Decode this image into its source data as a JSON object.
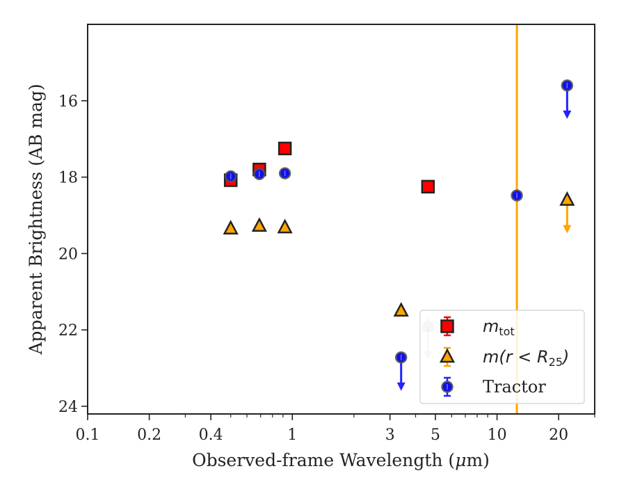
{
  "chart_data": {
    "type": "scatter",
    "xscale": "log",
    "yinverted": true,
    "xlim": [
      0.1,
      30
    ],
    "ylim": [
      24.2,
      14.0
    ],
    "xlabel_prefix": "Observed-frame Wavelength (",
    "xlabel_mu": "μ",
    "xlabel_suffix": "m)",
    "ylabel": "Apparent Brightness (AB mag)",
    "x_ticks": [
      {
        "value": 0.1,
        "label": "0.1"
      },
      {
        "value": 0.2,
        "label": "0.2"
      },
      {
        "value": 0.4,
        "label": "0.4"
      },
      {
        "value": 1,
        "label": "1"
      },
      {
        "value": 3,
        "label": "3"
      },
      {
        "value": 5,
        "label": "5"
      },
      {
        "value": 10,
        "label": "10"
      },
      {
        "value": 20,
        "label": "20"
      }
    ],
    "y_ticks": [
      {
        "value": 16,
        "label": "16"
      },
      {
        "value": 18,
        "label": "18"
      },
      {
        "value": 20,
        "label": "20"
      },
      {
        "value": 22,
        "label": "22"
      },
      {
        "value": 24,
        "label": "24"
      }
    ],
    "vline": {
      "x": 12.5,
      "color": "#FFA500"
    },
    "series": [
      {
        "key": "mtot",
        "marker": "square",
        "face": "#ff0000",
        "edge": "#222222",
        "errcolor": "#ff0000",
        "points": [
          {
            "x": 0.5,
            "y": 18.08
          },
          {
            "x": 0.69,
            "y": 17.8
          },
          {
            "x": 0.92,
            "y": 17.25
          },
          {
            "x": 4.6,
            "y": 18.25
          }
        ]
      },
      {
        "key": "mr25",
        "marker": "triangle",
        "face": "#FFA500",
        "edge": "#222222",
        "errcolor": "#FFA500",
        "points": [
          {
            "x": 0.5,
            "y": 19.35
          },
          {
            "x": 0.69,
            "y": 19.28
          },
          {
            "x": 0.92,
            "y": 19.32
          },
          {
            "x": 3.4,
            "y": 21.5
          },
          {
            "x": 4.6,
            "y": 21.9,
            "upper_limit": true,
            "faded": true
          },
          {
            "x": 22,
            "y": 18.6,
            "upper_limit": true
          }
        ]
      },
      {
        "key": "tractor",
        "marker": "circle",
        "face": "#1010ee",
        "edge": "#555555",
        "errcolor": "#2222ff",
        "points": [
          {
            "x": 0.5,
            "y": 17.98
          },
          {
            "x": 0.69,
            "y": 17.92
          },
          {
            "x": 0.92,
            "y": 17.9
          },
          {
            "x": 3.4,
            "y": 22.72,
            "upper_limit": true
          },
          {
            "x": 4.6,
            "y": 21.9,
            "upper_limit": true,
            "faded": true
          },
          {
            "x": 12.5,
            "y": 18.48
          },
          {
            "x": 22,
            "y": 15.6,
            "upper_limit": true
          }
        ]
      }
    ],
    "legend": {
      "placement": "lower-right",
      "entries": [
        {
          "series": "mtot",
          "math_main": "m",
          "math_sub": "tot"
        },
        {
          "series": "mr25",
          "math_main": "m(r < R",
          "math_sub": "25",
          "math_tail": ")"
        },
        {
          "series": "tractor",
          "text": "Tractor"
        }
      ]
    }
  }
}
